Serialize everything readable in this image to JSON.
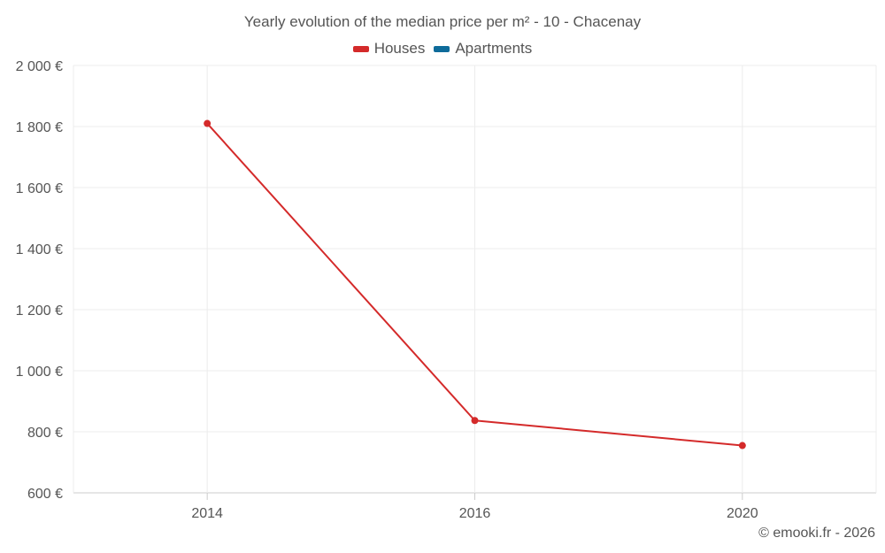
{
  "chart_data": {
    "type": "line",
    "title": "Yearly evolution of the median price per m² - 10 - Chacenay",
    "categories": [
      "2014",
      "2016",
      "2020"
    ],
    "series": [
      {
        "name": "Houses",
        "color": "#d42a2a",
        "values": [
          1810,
          837,
          755
        ]
      },
      {
        "name": "Apartments",
        "color": "#0e6b9a",
        "values": [
          null,
          null,
          null
        ]
      }
    ],
    "ylim": [
      600,
      2000
    ],
    "yticks": [
      600,
      800,
      1000,
      1200,
      1400,
      1600,
      1800,
      2000
    ],
    "ytick_labels": [
      "600 €",
      "800 €",
      "1 000 €",
      "1 200 €",
      "1 400 €",
      "1 600 €",
      "1 800 €",
      "2 000 €"
    ],
    "xlabel": "",
    "ylabel": "",
    "grid": true,
    "legend_position": "top-center"
  },
  "credits": "© emooki.fr - 2026"
}
